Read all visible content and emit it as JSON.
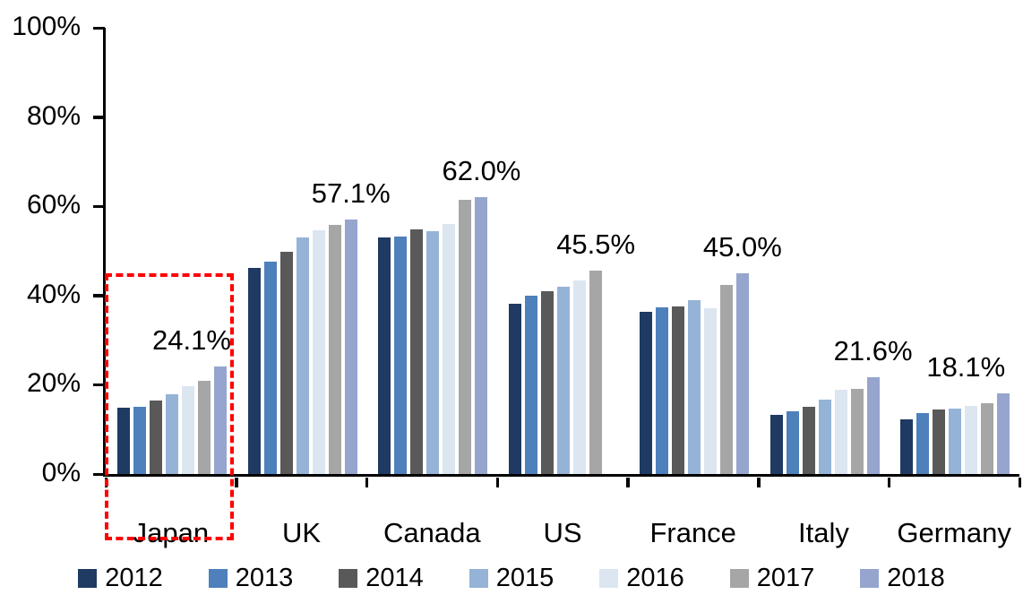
{
  "chart_data": {
    "type": "bar",
    "title": "",
    "xlabel": "",
    "ylabel": "",
    "ylim": [
      0,
      100
    ],
    "y_ticks": [
      "0%",
      "20%",
      "40%",
      "60%",
      "80%",
      "100%"
    ],
    "grid": false,
    "legend_position": "bottom",
    "categories": [
      "Japan",
      "UK",
      "Canada",
      "US",
      "France",
      "Italy",
      "Germany"
    ],
    "series": [
      {
        "name": "2012",
        "color": "#1f3a63",
        "values": [
          14.8,
          46.2,
          53.0,
          38.2,
          36.4,
          13.2,
          12.3
        ]
      },
      {
        "name": "2013",
        "color": "#4e80bb",
        "values": [
          15.0,
          47.5,
          53.3,
          40.0,
          37.4,
          14.1,
          13.7
        ]
      },
      {
        "name": "2014",
        "color": "#595959",
        "values": [
          16.5,
          49.8,
          54.8,
          40.9,
          37.5,
          15.1,
          14.4
        ]
      },
      {
        "name": "2015",
        "color": "#95b3d7",
        "values": [
          17.8,
          53.0,
          54.5,
          41.9,
          39.0,
          16.7,
          14.6
        ]
      },
      {
        "name": "2016",
        "color": "#dce6f1",
        "values": [
          19.7,
          54.7,
          56.0,
          43.4,
          37.2,
          18.9,
          15.3
        ]
      },
      {
        "name": "2017",
        "color": "#a6a6a6",
        "values": [
          20.9,
          55.8,
          61.5,
          45.5,
          42.3,
          19.1,
          15.9
        ]
      },
      {
        "name": "2018",
        "color": "#95a5ce",
        "values": [
          24.1,
          57.1,
          62.0,
          null,
          45.0,
          21.6,
          18.1
        ]
      }
    ],
    "data_labels": [
      "24.1%",
      "57.1%",
      "62.0%",
      "45.5%",
      "45.0%",
      "21.6%",
      "18.1%"
    ],
    "annotation": {
      "type": "dashed-box",
      "around_category": "Japan",
      "color": "#ff0000"
    }
  }
}
